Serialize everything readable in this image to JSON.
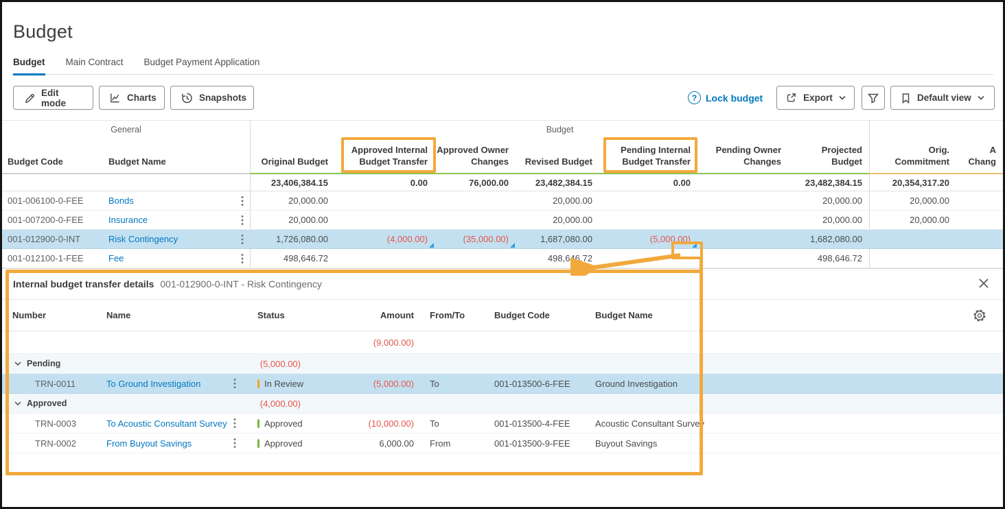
{
  "page": {
    "title": "Budget"
  },
  "tabs": [
    {
      "label": "Budget",
      "active": true
    },
    {
      "label": "Main Contract",
      "active": false
    },
    {
      "label": "Budget Payment Application",
      "active": false
    }
  ],
  "toolbar": {
    "edit_mode": "Edit mode",
    "charts": "Charts",
    "snapshots": "Snapshots",
    "lock_budget": "Lock budget",
    "help_glyph": "?",
    "export": "Export",
    "default_view": "Default view"
  },
  "icons": {
    "edit_mode": "pencil-icon",
    "charts": "line-chart-icon",
    "snapshots": "history-icon",
    "lock_budget": "help-circle-icon",
    "export": "share-icon",
    "filter": "funnel-icon",
    "default_view": "bookmark-icon",
    "panel_close": "close-icon",
    "panel_settings": "gear-icon",
    "row_menu": "kebab-icon",
    "group_toggle": "chevron-down-icon",
    "cell_detail": "corner-triangle-icon"
  },
  "colors": {
    "accent_blue": "#0277C0",
    "negative_red": "#E4554A",
    "highlight_blue": "#C3E0F0",
    "group_row_bg": "#F2F7FA",
    "annotation_orange": "#F2A93C",
    "budget_underline_green": "#8CC152",
    "commitment_underline_orange": "#F2BC72",
    "marker_blue": "#2D9CDB",
    "status_in_review": "#F5A623",
    "status_approved": "#7CB342"
  },
  "budget_table": {
    "groups": [
      {
        "label": "General"
      },
      {
        "label": "Budget"
      },
      {
        "label": ""
      }
    ],
    "columns": {
      "code": "Budget Code",
      "name": "Budget Name",
      "original": "Original Budget",
      "appr_int": "Approved Internal Budget Transfer",
      "appr_owner": "Approved Owner Changes",
      "revised": "Revised Budget",
      "pend_int": "Pending Internal Budget Transfer",
      "pend_owner": "Pending Owner Changes",
      "projected": "Projected Budget",
      "orig_commit": "Orig. Commitment",
      "extra": "A Chang"
    },
    "rows": [
      {
        "type": "totals",
        "original": "23,406,384.15",
        "appr_int": "0.00",
        "appr_owner": "76,000.00",
        "revised": "23,482,384.15",
        "pend_int": "0.00",
        "pend_owner": "",
        "projected": "23,482,384.15",
        "orig_commit": "20,354,317.20"
      },
      {
        "type": "data",
        "code": "001-006100-0-FEE",
        "name": "Bonds",
        "original": "20,000.00",
        "revised": "20,000.00",
        "projected": "20,000.00",
        "orig_commit": "20,000.00"
      },
      {
        "type": "data",
        "code": "001-007200-0-FEE",
        "name": "Insurance",
        "original": "20,000.00",
        "revised": "20,000.00",
        "projected": "20,000.00",
        "orig_commit": "20,000.00"
      },
      {
        "type": "data",
        "highlight": true,
        "code": "001-012900-0-INT",
        "name": "Risk Contingency",
        "original": "1,726,080.00",
        "appr_int": "(4,000.00)",
        "appr_owner": "(35,000.00)",
        "revised": "1,687,080.00",
        "pend_int": "(5,000.00)",
        "projected": "1,682,080.00",
        "markers": [
          "appr_int",
          "appr_owner",
          "pend_int"
        ]
      },
      {
        "type": "data",
        "code": "001-012100-1-FEE",
        "name": "Fee",
        "original": "498,646.72",
        "revised": "498,646.72",
        "projected": "498,646.72"
      }
    ]
  },
  "transfer_panel": {
    "title": "Internal budget transfer details",
    "subtitle": "001-012900-0-INT - Risk Contingency",
    "columns": {
      "number": "Number",
      "name": "Name",
      "status": "Status",
      "amount": "Amount",
      "from_to": "From/To",
      "budget_code": "Budget Code",
      "budget_name": "Budget Name"
    },
    "rows": [
      {
        "type": "summary",
        "amount": "(9,000.00)"
      },
      {
        "type": "group",
        "label": "Pending",
        "amount": "(5,000.00)"
      },
      {
        "type": "data",
        "highlight": true,
        "number": "TRN-0011",
        "name": "To Ground Investigation",
        "status": "In Review",
        "status_color_key": "status_in_review",
        "amount": "(5,000.00)",
        "from_to": "To",
        "budget_code": "001-013500-6-FEE",
        "budget_name": "Ground Investigation"
      },
      {
        "type": "group",
        "label": "Approved",
        "amount": "(4,000.00)"
      },
      {
        "type": "data",
        "number": "TRN-0003",
        "name": "To Acoustic Consultant Survey",
        "status": "Approved",
        "status_color_key": "status_approved",
        "amount": "(10,000.00)",
        "from_to": "To",
        "budget_code": "001-013500-4-FEE",
        "budget_name": "Acoustic Consultant Survey"
      },
      {
        "type": "data",
        "number": "TRN-0002",
        "name": "From Buyout Savings",
        "status": "Approved",
        "status_color_key": "status_approved",
        "amount": "6,000.00",
        "from_to": "From",
        "budget_code": "001-013500-9-FEE",
        "budget_name": "Buyout Savings"
      }
    ]
  }
}
